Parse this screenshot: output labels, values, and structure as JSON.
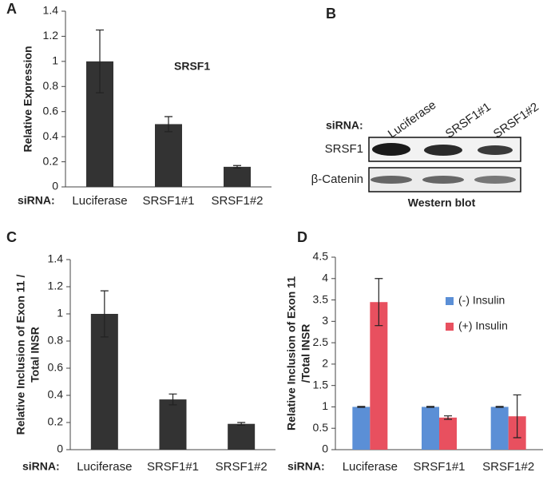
{
  "chart_data": [
    {
      "type": "bar",
      "panel": "A",
      "ylabel": [
        "Relative Expression"
      ],
      "annotation": "SRSF1",
      "xprefix": "siRNA:",
      "categories": [
        "Luciferase",
        "SRSF1#1",
        "SRSF1#2"
      ],
      "series": [
        {
          "color": "#333333",
          "values": [
            1.0,
            0.5,
            0.16
          ],
          "errors": [
            0.25,
            0.06,
            0.01
          ]
        }
      ],
      "ylim": [
        0,
        1.4
      ],
      "yticks": [
        0,
        0.2,
        0.4,
        0.6,
        0.8,
        1,
        1.2,
        1.4
      ]
    },
    {
      "type": "bar",
      "panel": "C",
      "ylabel": [
        "Relative Inclusion of Exon 11 /",
        "Total INSR"
      ],
      "xprefix": "siRNA:",
      "categories": [
        "Luciferase",
        "SRSF1#1",
        "SRSF1#2"
      ],
      "series": [
        {
          "color": "#333333",
          "values": [
            1.0,
            0.37,
            0.19
          ],
          "errors": [
            0.17,
            0.04,
            0.01
          ]
        }
      ],
      "ylim": [
        0,
        1.4
      ],
      "yticks": [
        0,
        0.2,
        0.4,
        0.6,
        0.8,
        1,
        1.2,
        1.4
      ]
    },
    {
      "type": "bar",
      "panel": "D",
      "ylabel": [
        "Relative Inclusion of Exon 11",
        "/Total INSR"
      ],
      "xprefix": "siRNA:",
      "categories": [
        "Luciferase",
        "SRSF1#1",
        "SRSF1#2"
      ],
      "series": [
        {
          "name": "(-) Insulin",
          "color": "#5b8fd6",
          "values": [
            1.0,
            1.0,
            1.0
          ],
          "errors": [
            0.01,
            0.01,
            0.01
          ]
        },
        {
          "name": "(+) Insulin",
          "color": "#e8505f",
          "values": [
            3.45,
            0.75,
            0.78
          ],
          "errors": [
            0.55,
            0.04,
            0.5
          ]
        }
      ],
      "ylim": [
        0,
        4.5
      ],
      "yticks": [
        0,
        0.5,
        1,
        1.5,
        2,
        2.5,
        3,
        3.5,
        4,
        4.5
      ]
    }
  ],
  "blot": {
    "panel": "B",
    "row_label": "siRNA:",
    "lanes": [
      "Luciferase",
      "SRSF1#1",
      "SRSF1#2"
    ],
    "rows": [
      "SRSF1",
      "β-Catenin"
    ],
    "caption": "Western blot"
  }
}
